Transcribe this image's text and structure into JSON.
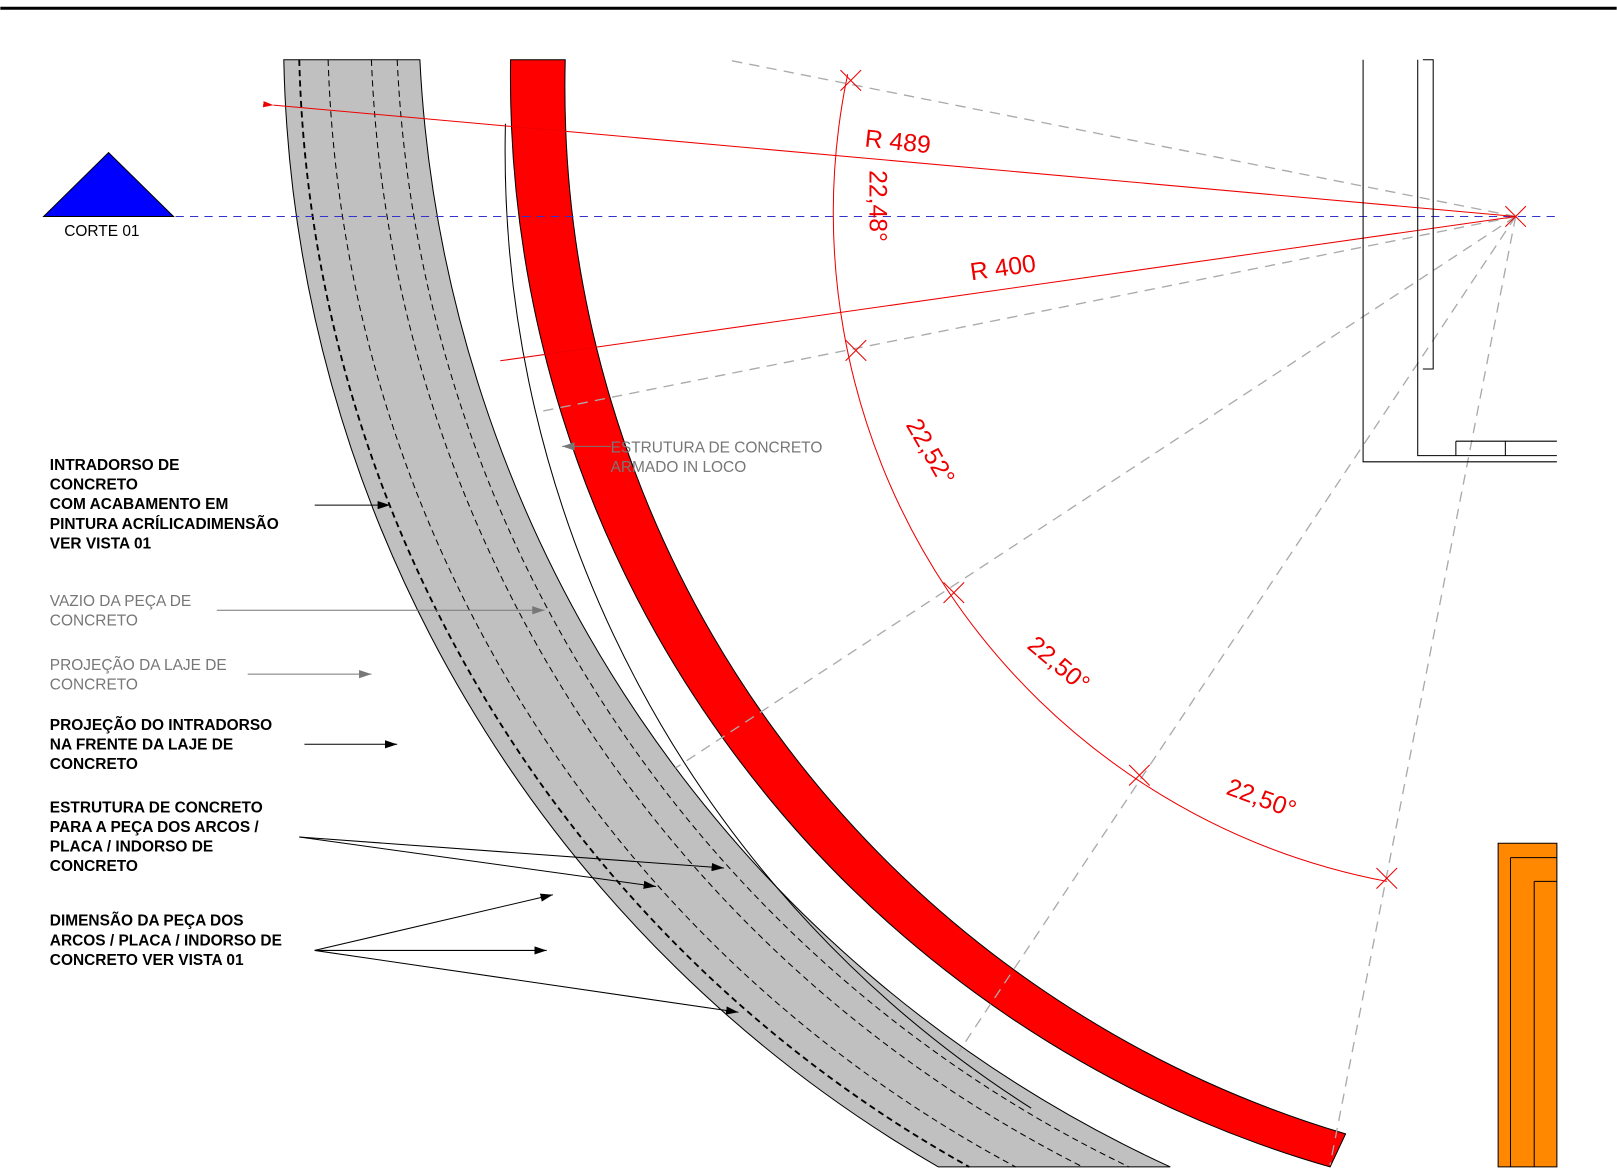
{
  "section_marker": {
    "label": "CORTE 01"
  },
  "dimensions": {
    "radii": [
      "R 489",
      "R 400"
    ],
    "angles": [
      "22,48°",
      "22,52°",
      "22,50°",
      "22,50°"
    ]
  },
  "callout": {
    "lines": [
      "ESTRUTURA DE CONCRETO",
      "ARMADO IN LOCO"
    ]
  },
  "annotations": [
    {
      "lines": [
        "INTRADORSO DE",
        "CONCRETO",
        "COM ACABAMENTO EM",
        "PINTURA ACRÍLICADIMENSÃO",
        "VER VISTA 01"
      ]
    },
    {
      "lines": [
        "VAZIO DA PEÇA DE",
        "CONCRETO"
      ]
    },
    {
      "lines": [
        "PROJEÇÃO DA LAJE DE",
        "CONCRETO"
      ]
    },
    {
      "lines": [
        "PROJEÇÃO DO INTRADORSO",
        "NA FRENTE DA LAJE DE",
        "CONCRETO"
      ]
    },
    {
      "lines": [
        "ESTRUTURA DE CONCRETO",
        "PARA A PEÇA DOS ARCOS /",
        "PLACA / INDORSO DE",
        "CONCRETO"
      ]
    },
    {
      "lines": [
        "DIMENSÃO DA PEÇA DOS",
        "ARCOS / PLACA / INDORSO DE",
        "CONCRETO VER VISTA 01"
      ]
    }
  ]
}
